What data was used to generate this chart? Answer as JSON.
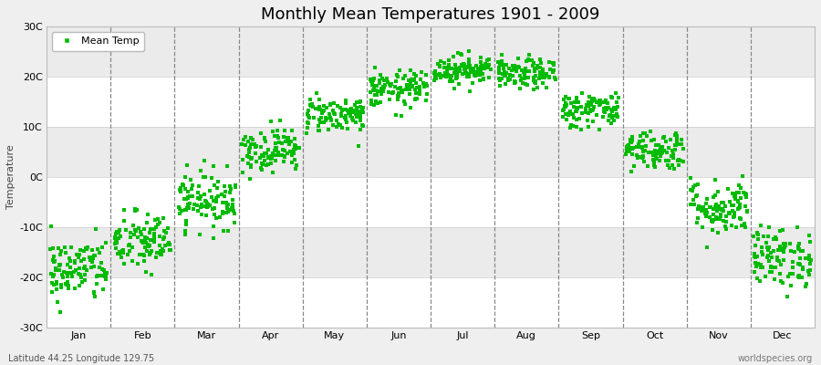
{
  "title": "Monthly Mean Temperatures 1901 - 2009",
  "ylabel": "Temperature",
  "subtitle_left": "Latitude 44.25 Longitude 129.75",
  "subtitle_right": "worldspecies.org",
  "legend_label": "Mean Temp",
  "marker_color": "#00BB00",
  "background_color": "#EFEFEF",
  "plot_bg_color": "#FFFFFF",
  "band_colors": [
    "#FFFFFF",
    "#EBEBEB"
  ],
  "ylim": [
    -30,
    30
  ],
  "yticks": [
    -30,
    -20,
    -10,
    0,
    10,
    20,
    30
  ],
  "ytick_labels": [
    "-30C",
    "-20C",
    "-10C",
    "0C",
    "10C",
    "20C",
    "30C"
  ],
  "months": [
    "Jan",
    "Feb",
    "Mar",
    "Apr",
    "May",
    "Jun",
    "Jul",
    "Aug",
    "Sep",
    "Oct",
    "Nov",
    "Dec"
  ],
  "month_means": [
    -18.5,
    -13.0,
    -4.5,
    5.5,
    12.5,
    17.5,
    21.5,
    20.5,
    13.5,
    5.5,
    -6.0,
    -16.0
  ],
  "month_stds": [
    3.2,
    3.0,
    2.8,
    2.2,
    1.8,
    1.8,
    1.5,
    1.5,
    1.8,
    2.0,
    2.8,
    3.0
  ],
  "n_years": 109,
  "random_seed": 42,
  "figsize": [
    9.0,
    4.0
  ],
  "dpi": 100,
  "title_fontsize": 13,
  "axis_label_fontsize": 8,
  "tick_fontsize": 8,
  "legend_fontsize": 8,
  "marker_size": 3,
  "vline_color": "#888888",
  "vline_linestyle": "--",
  "vline_linewidth": 0.9,
  "hgrid_color": "#CCCCCC",
  "hgrid_linestyle": "-",
  "hgrid_linewidth": 0.5,
  "spine_color": "#BBBBBB"
}
